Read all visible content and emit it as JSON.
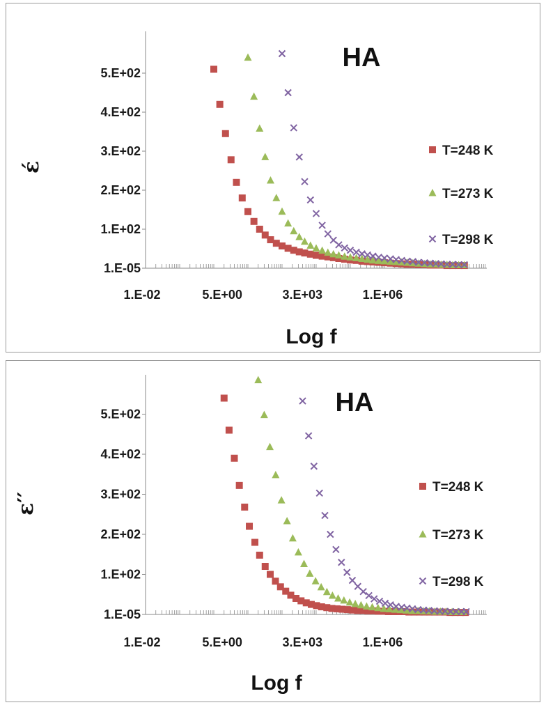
{
  "chart_data": [
    {
      "type": "scatter",
      "title": "HA",
      "xlabel": "Log f",
      "ylabel": "έ",
      "x_tick_labels": [
        "1.E-02",
        "5.E+00",
        "3.E+03",
        "1.E+06"
      ],
      "y_tick_labels": [
        "1.E-05",
        "1.E+02",
        "2.E+02",
        "3.E+02",
        "4.E+02",
        "5.E+02"
      ],
      "x_scale": "log",
      "xlim": [
        0.01,
        100000000
      ],
      "ylim": [
        0,
        560
      ],
      "legend_position": "right",
      "series": [
        {
          "name": "T=248 K",
          "marker": "square",
          "color": "#c0504d",
          "x": [
            1,
            1.5,
            2.2,
            3.2,
            4.6,
            6.8,
            10,
            15,
            22,
            32,
            46,
            68,
            100,
            150,
            220,
            320,
            460,
            680,
            1000,
            1500,
            2200,
            3200,
            4600,
            6800,
            10000,
            15000,
            22000,
            32000,
            46000,
            68000,
            100000,
            150000,
            220000,
            320000,
            460000,
            680000,
            1000000,
            1500000,
            2200000,
            3200000,
            4600000,
            6800000,
            10000000,
            15000000,
            22000000
          ],
          "y": [
            510,
            420,
            345,
            278,
            220,
            180,
            145,
            120,
            100,
            85,
            73,
            64,
            57,
            51,
            46,
            42,
            39,
            36,
            33,
            31,
            29,
            27,
            25,
            23,
            21,
            20,
            18,
            17,
            16,
            15,
            14,
            13,
            12,
            11,
            10,
            10,
            9,
            9,
            8,
            8,
            8,
            7,
            7,
            7,
            7
          ]
        },
        {
          "name": "T=273 K",
          "marker": "triangle",
          "color": "#9bbb59",
          "x": [
            10,
            15,
            22,
            32,
            46,
            68,
            100,
            150,
            220,
            320,
            460,
            680,
            1000,
            1500,
            2200,
            3200,
            4600,
            6800,
            10000,
            15000,
            22000,
            32000,
            46000,
            68000,
            100000,
            150000,
            220000,
            320000,
            460000,
            680000,
            1000000,
            1500000,
            2200000,
            3200000,
            4600000,
            6800000,
            10000000,
            15000000,
            22000000
          ],
          "y": [
            540,
            440,
            358,
            285,
            225,
            180,
            145,
            115,
            95,
            80,
            68,
            58,
            51,
            45,
            40,
            36,
            33,
            30,
            28,
            26,
            24,
            22,
            20,
            19,
            18,
            17,
            16,
            15,
            14,
            13,
            12,
            11,
            10,
            10,
            9,
            9,
            8,
            8,
            8
          ]
        },
        {
          "name": "T=298 K",
          "marker": "x",
          "color": "#8064a2",
          "x": [
            100,
            150,
            220,
            320,
            460,
            680,
            1000,
            1500,
            2200,
            3200,
            4600,
            6800,
            10000,
            15000,
            22000,
            32000,
            46000,
            68000,
            100000,
            150000,
            220000,
            320000,
            460000,
            680000,
            1000000,
            1500000,
            2200000,
            3200000,
            4600000,
            6800000,
            10000000,
            15000000,
            22000000
          ],
          "y": [
            550,
            450,
            360,
            285,
            222,
            175,
            140,
            110,
            88,
            72,
            60,
            52,
            46,
            41,
            37,
            34,
            31,
            28,
            26,
            24,
            22,
            20,
            18,
            17,
            15,
            14,
            13,
            12,
            11,
            10,
            10,
            9,
            9
          ]
        }
      ]
    },
    {
      "type": "scatter",
      "title": "HA",
      "xlabel": "Log f",
      "ylabel": "ε′′",
      "x_tick_labels": [
        "1.E-02",
        "5.E+00",
        "3.E+03",
        "1.E+06"
      ],
      "y_tick_labels": [
        "1.E-05",
        "1.E+02",
        "2.E+02",
        "3.E+02",
        "4.E+02",
        "5.E+02"
      ],
      "x_scale": "log",
      "xlim": [
        0.01,
        100000000
      ],
      "ylim": [
        0,
        590
      ],
      "legend_position": "right",
      "series": [
        {
          "name": "T=248 K",
          "marker": "square",
          "color": "#c0504d",
          "x": [
            2,
            2.8,
            4,
            5.6,
            8,
            11,
            16,
            22,
            32,
            45,
            64,
            90,
            128,
            180,
            256,
            360,
            512,
            720,
            1024,
            1440,
            2048,
            2880,
            4096,
            5760,
            8192,
            11520,
            16384,
            23040,
            32768,
            46080,
            65536,
            92160,
            131072,
            184320,
            262144,
            368640,
            524288,
            737280,
            1048576,
            1474560,
            2097152,
            2949120,
            4194304,
            5898240,
            8388608,
            11796480,
            16777216,
            23592960
          ],
          "y": [
            540,
            460,
            390,
            322,
            268,
            220,
            180,
            148,
            120,
            100,
            83,
            69,
            58,
            48,
            40,
            34,
            29,
            25,
            22,
            19,
            17,
            15,
            14,
            13,
            12,
            11,
            10,
            10,
            9,
            9,
            8,
            8,
            7,
            7,
            7,
            7,
            6,
            6,
            6,
            6,
            6,
            6,
            6,
            6,
            5,
            5,
            5,
            5
          ]
        },
        {
          "name": "T=273 K",
          "marker": "triangle",
          "color": "#9bbb59",
          "x": [
            20,
            30,
            44,
            65,
            96,
            140,
            206,
            300,
            440,
            650,
            960,
            1400,
            2060,
            3000,
            4400,
            6500,
            9600,
            14000,
            20600,
            30000,
            44000,
            65000,
            96000,
            140000,
            206000,
            300000,
            440000,
            650000,
            960000,
            1400000,
            2060000,
            3000000,
            4400000,
            6500000,
            9600000,
            14000000,
            20600000
          ],
          "y": [
            585,
            498,
            418,
            348,
            285,
            233,
            190,
            155,
            126,
            102,
            83,
            68,
            56,
            47,
            40,
            35,
            30,
            26,
            23,
            20,
            18,
            16,
            14,
            13,
            12,
            11,
            10,
            9,
            9,
            8,
            8,
            7,
            7,
            7,
            6,
            6,
            6
          ]
        },
        {
          "name": "T=298 K",
          "marker": "x",
          "color": "#8064a2",
          "x": [
            400,
            600,
            860,
            1250,
            1800,
            2600,
            3800,
            5500,
            8000,
            11500,
            16600,
            24000,
            35000,
            50000,
            72000,
            105000,
            150000,
            220000,
            320000,
            460000,
            660000,
            960000,
            1400000,
            2000000,
            2900000,
            4200000,
            6000000,
            8700000,
            12600000,
            18200000,
            25000000
          ],
          "y": [
            533,
            446,
            370,
            303,
            247,
            200,
            162,
            130,
            105,
            85,
            70,
            57,
            47,
            39,
            33,
            28,
            24,
            20,
            18,
            16,
            14,
            12,
            11,
            10,
            9,
            8,
            8,
            7,
            7,
            7,
            7
          ]
        }
      ]
    }
  ]
}
